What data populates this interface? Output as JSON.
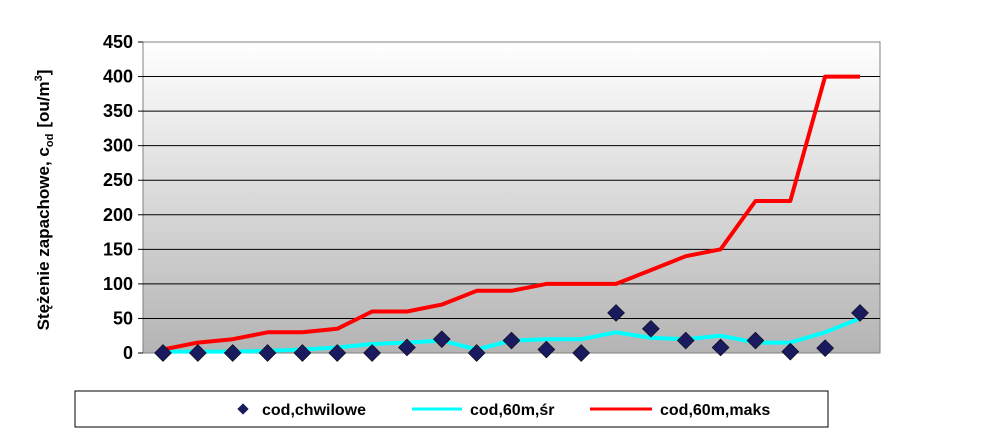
{
  "chart_data": {
    "type": "line",
    "ylabel": "Stężenie zapachowe, c",
    "ylabel_sub": "od",
    "ylabel_unit": "[ou/m",
    "ylabel_sup": "3",
    "ylabel_close": "]",
    "ylim": [
      0,
      450
    ],
    "yticks": [
      0,
      50,
      100,
      150,
      200,
      250,
      300,
      350,
      400,
      450
    ],
    "x_count": 21,
    "grid": true,
    "legend_position": "bottom",
    "series": [
      {
        "name": "cod,chwilowe",
        "kind": "scatter",
        "color": "#1a1a5e",
        "values": [
          0,
          0,
          0,
          0,
          0,
          0,
          0,
          8,
          20,
          0,
          18,
          5,
          0,
          58,
          35,
          18,
          8,
          18,
          2,
          7,
          58
        ]
      },
      {
        "name": "cod,60m,śr",
        "kind": "line",
        "color": "#00ffff",
        "values": [
          2,
          2,
          2,
          3,
          5,
          8,
          13,
          15,
          18,
          5,
          18,
          20,
          20,
          30,
          22,
          20,
          25,
          15,
          15,
          30,
          50
        ]
      },
      {
        "name": "cod,60m,maks",
        "kind": "line",
        "color": "#ff0000",
        "values": [
          5,
          15,
          20,
          30,
          30,
          35,
          60,
          60,
          70,
          90,
          90,
          100,
          100,
          100,
          120,
          140,
          150,
          220,
          220,
          400,
          400
        ]
      }
    ]
  }
}
